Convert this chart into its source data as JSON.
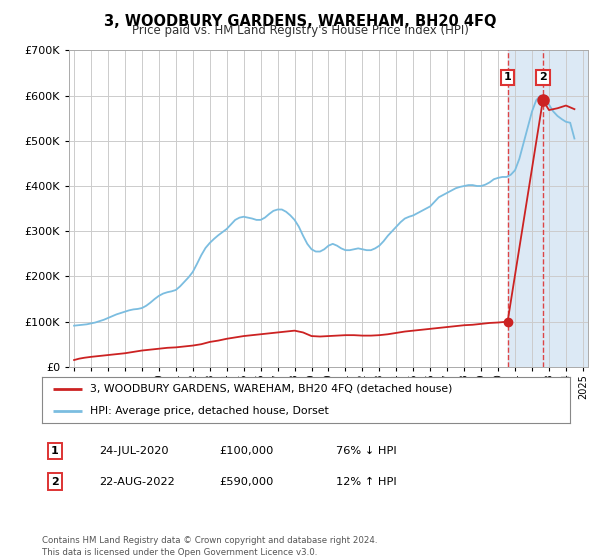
{
  "title": "3, WOODBURY GARDENS, WAREHAM, BH20 4FQ",
  "subtitle": "Price paid vs. HM Land Registry's House Price Index (HPI)",
  "background_color": "#ffffff",
  "plot_bg_color": "#ffffff",
  "grid_color": "#cccccc",
  "ylim": [
    0,
    700000
  ],
  "yticks": [
    0,
    100000,
    200000,
    300000,
    400000,
    500000,
    600000,
    700000
  ],
  "ytick_labels": [
    "£0",
    "£100K",
    "£200K",
    "£300K",
    "£400K",
    "£500K",
    "£600K",
    "£700K"
  ],
  "xlim_start": 1994.7,
  "xlim_end": 2025.3,
  "hpi_color": "#7bbde0",
  "price_color": "#cc2222",
  "sale1_date": 2020.56,
  "sale1_price": 100000,
  "sale1_label": "1",
  "sale2_date": 2022.64,
  "sale2_price": 590000,
  "sale2_label": "2",
  "highlight_color": "#dce9f5",
  "vline_color": "#dd3333",
  "legend_label_price": "3, WOODBURY GARDENS, WAREHAM, BH20 4FQ (detached house)",
  "legend_label_hpi": "HPI: Average price, detached house, Dorset",
  "table_row1": [
    "1",
    "24-JUL-2020",
    "£100,000",
    "76% ↓ HPI"
  ],
  "table_row2": [
    "2",
    "22-AUG-2022",
    "£590,000",
    "12% ↑ HPI"
  ],
  "footer": "Contains HM Land Registry data © Crown copyright and database right 2024.\nThis data is licensed under the Open Government Licence v3.0.",
  "hpi_data_x": [
    1995.0,
    1995.25,
    1995.5,
    1995.75,
    1996.0,
    1996.25,
    1996.5,
    1996.75,
    1997.0,
    1997.25,
    1997.5,
    1997.75,
    1998.0,
    1998.25,
    1998.5,
    1998.75,
    1999.0,
    1999.25,
    1999.5,
    1999.75,
    2000.0,
    2000.25,
    2000.5,
    2000.75,
    2001.0,
    2001.25,
    2001.5,
    2001.75,
    2002.0,
    2002.25,
    2002.5,
    2002.75,
    2003.0,
    2003.25,
    2003.5,
    2003.75,
    2004.0,
    2004.25,
    2004.5,
    2004.75,
    2005.0,
    2005.25,
    2005.5,
    2005.75,
    2006.0,
    2006.25,
    2006.5,
    2006.75,
    2007.0,
    2007.25,
    2007.5,
    2007.75,
    2008.0,
    2008.25,
    2008.5,
    2008.75,
    2009.0,
    2009.25,
    2009.5,
    2009.75,
    2010.0,
    2010.25,
    2010.5,
    2010.75,
    2011.0,
    2011.25,
    2011.5,
    2011.75,
    2012.0,
    2012.25,
    2012.5,
    2012.75,
    2013.0,
    2013.25,
    2013.5,
    2013.75,
    2014.0,
    2014.25,
    2014.5,
    2014.75,
    2015.0,
    2015.25,
    2015.5,
    2015.75,
    2016.0,
    2016.25,
    2016.5,
    2016.75,
    2017.0,
    2017.25,
    2017.5,
    2017.75,
    2018.0,
    2018.25,
    2018.5,
    2018.75,
    2019.0,
    2019.25,
    2019.5,
    2019.75,
    2020.0,
    2020.25,
    2020.5,
    2020.75,
    2021.0,
    2021.25,
    2021.5,
    2021.75,
    2022.0,
    2022.25,
    2022.5,
    2022.75,
    2023.0,
    2023.25,
    2023.5,
    2023.75,
    2024.0,
    2024.25,
    2024.5
  ],
  "hpi_data_y": [
    91000,
    92000,
    93000,
    94000,
    96000,
    98000,
    101000,
    104000,
    108000,
    112000,
    116000,
    119000,
    122000,
    125000,
    127000,
    128000,
    130000,
    135000,
    142000,
    150000,
    157000,
    162000,
    165000,
    167000,
    170000,
    178000,
    188000,
    198000,
    210000,
    228000,
    247000,
    263000,
    274000,
    283000,
    291000,
    298000,
    305000,
    315000,
    325000,
    330000,
    332000,
    330000,
    328000,
    325000,
    325000,
    330000,
    338000,
    345000,
    348000,
    348000,
    343000,
    335000,
    325000,
    310000,
    290000,
    272000,
    260000,
    255000,
    255000,
    260000,
    268000,
    272000,
    268000,
    262000,
    258000,
    258000,
    260000,
    262000,
    260000,
    258000,
    258000,
    262000,
    268000,
    278000,
    290000,
    300000,
    310000,
    320000,
    328000,
    332000,
    335000,
    340000,
    345000,
    350000,
    355000,
    365000,
    375000,
    380000,
    385000,
    390000,
    395000,
    398000,
    400000,
    402000,
    402000,
    400000,
    400000,
    403000,
    408000,
    415000,
    418000,
    420000,
    420000,
    425000,
    435000,
    460000,
    495000,
    530000,
    565000,
    590000,
    600000,
    595000,
    580000,
    565000,
    555000,
    548000,
    542000,
    540000,
    505000
  ],
  "price_data_x": [
    1995.0,
    1995.3,
    1995.6,
    1996.0,
    1996.5,
    1997.0,
    1997.5,
    1998.0,
    1998.5,
    1999.0,
    1999.5,
    2000.0,
    2000.5,
    2001.0,
    2001.5,
    2002.0,
    2002.5,
    2003.0,
    2003.5,
    2004.0,
    2004.5,
    2005.0,
    2005.5,
    2006.0,
    2006.5,
    2007.0,
    2007.5,
    2008.0,
    2008.5,
    2009.0,
    2009.5,
    2010.0,
    2010.5,
    2011.0,
    2011.5,
    2012.0,
    2012.5,
    2013.0,
    2013.5,
    2014.0,
    2014.5,
    2015.0,
    2015.5,
    2016.0,
    2016.5,
    2017.0,
    2017.5,
    2018.0,
    2018.5,
    2019.0,
    2019.5,
    2020.0,
    2020.3,
    2020.56,
    2022.64,
    2023.0,
    2023.5,
    2024.0,
    2024.5
  ],
  "price_data_y": [
    15000,
    18000,
    20000,
    22000,
    24000,
    26000,
    28000,
    30000,
    33000,
    36000,
    38000,
    40000,
    42000,
    43000,
    45000,
    47000,
    50000,
    55000,
    58000,
    62000,
    65000,
    68000,
    70000,
    72000,
    74000,
    76000,
    78000,
    80000,
    76000,
    68000,
    67000,
    68000,
    69000,
    70000,
    70000,
    69000,
    69000,
    70000,
    72000,
    75000,
    78000,
    80000,
    82000,
    84000,
    86000,
    88000,
    90000,
    92000,
    93000,
    95000,
    97000,
    98000,
    99000,
    100000,
    590000,
    568000,
    572000,
    578000,
    570000
  ]
}
